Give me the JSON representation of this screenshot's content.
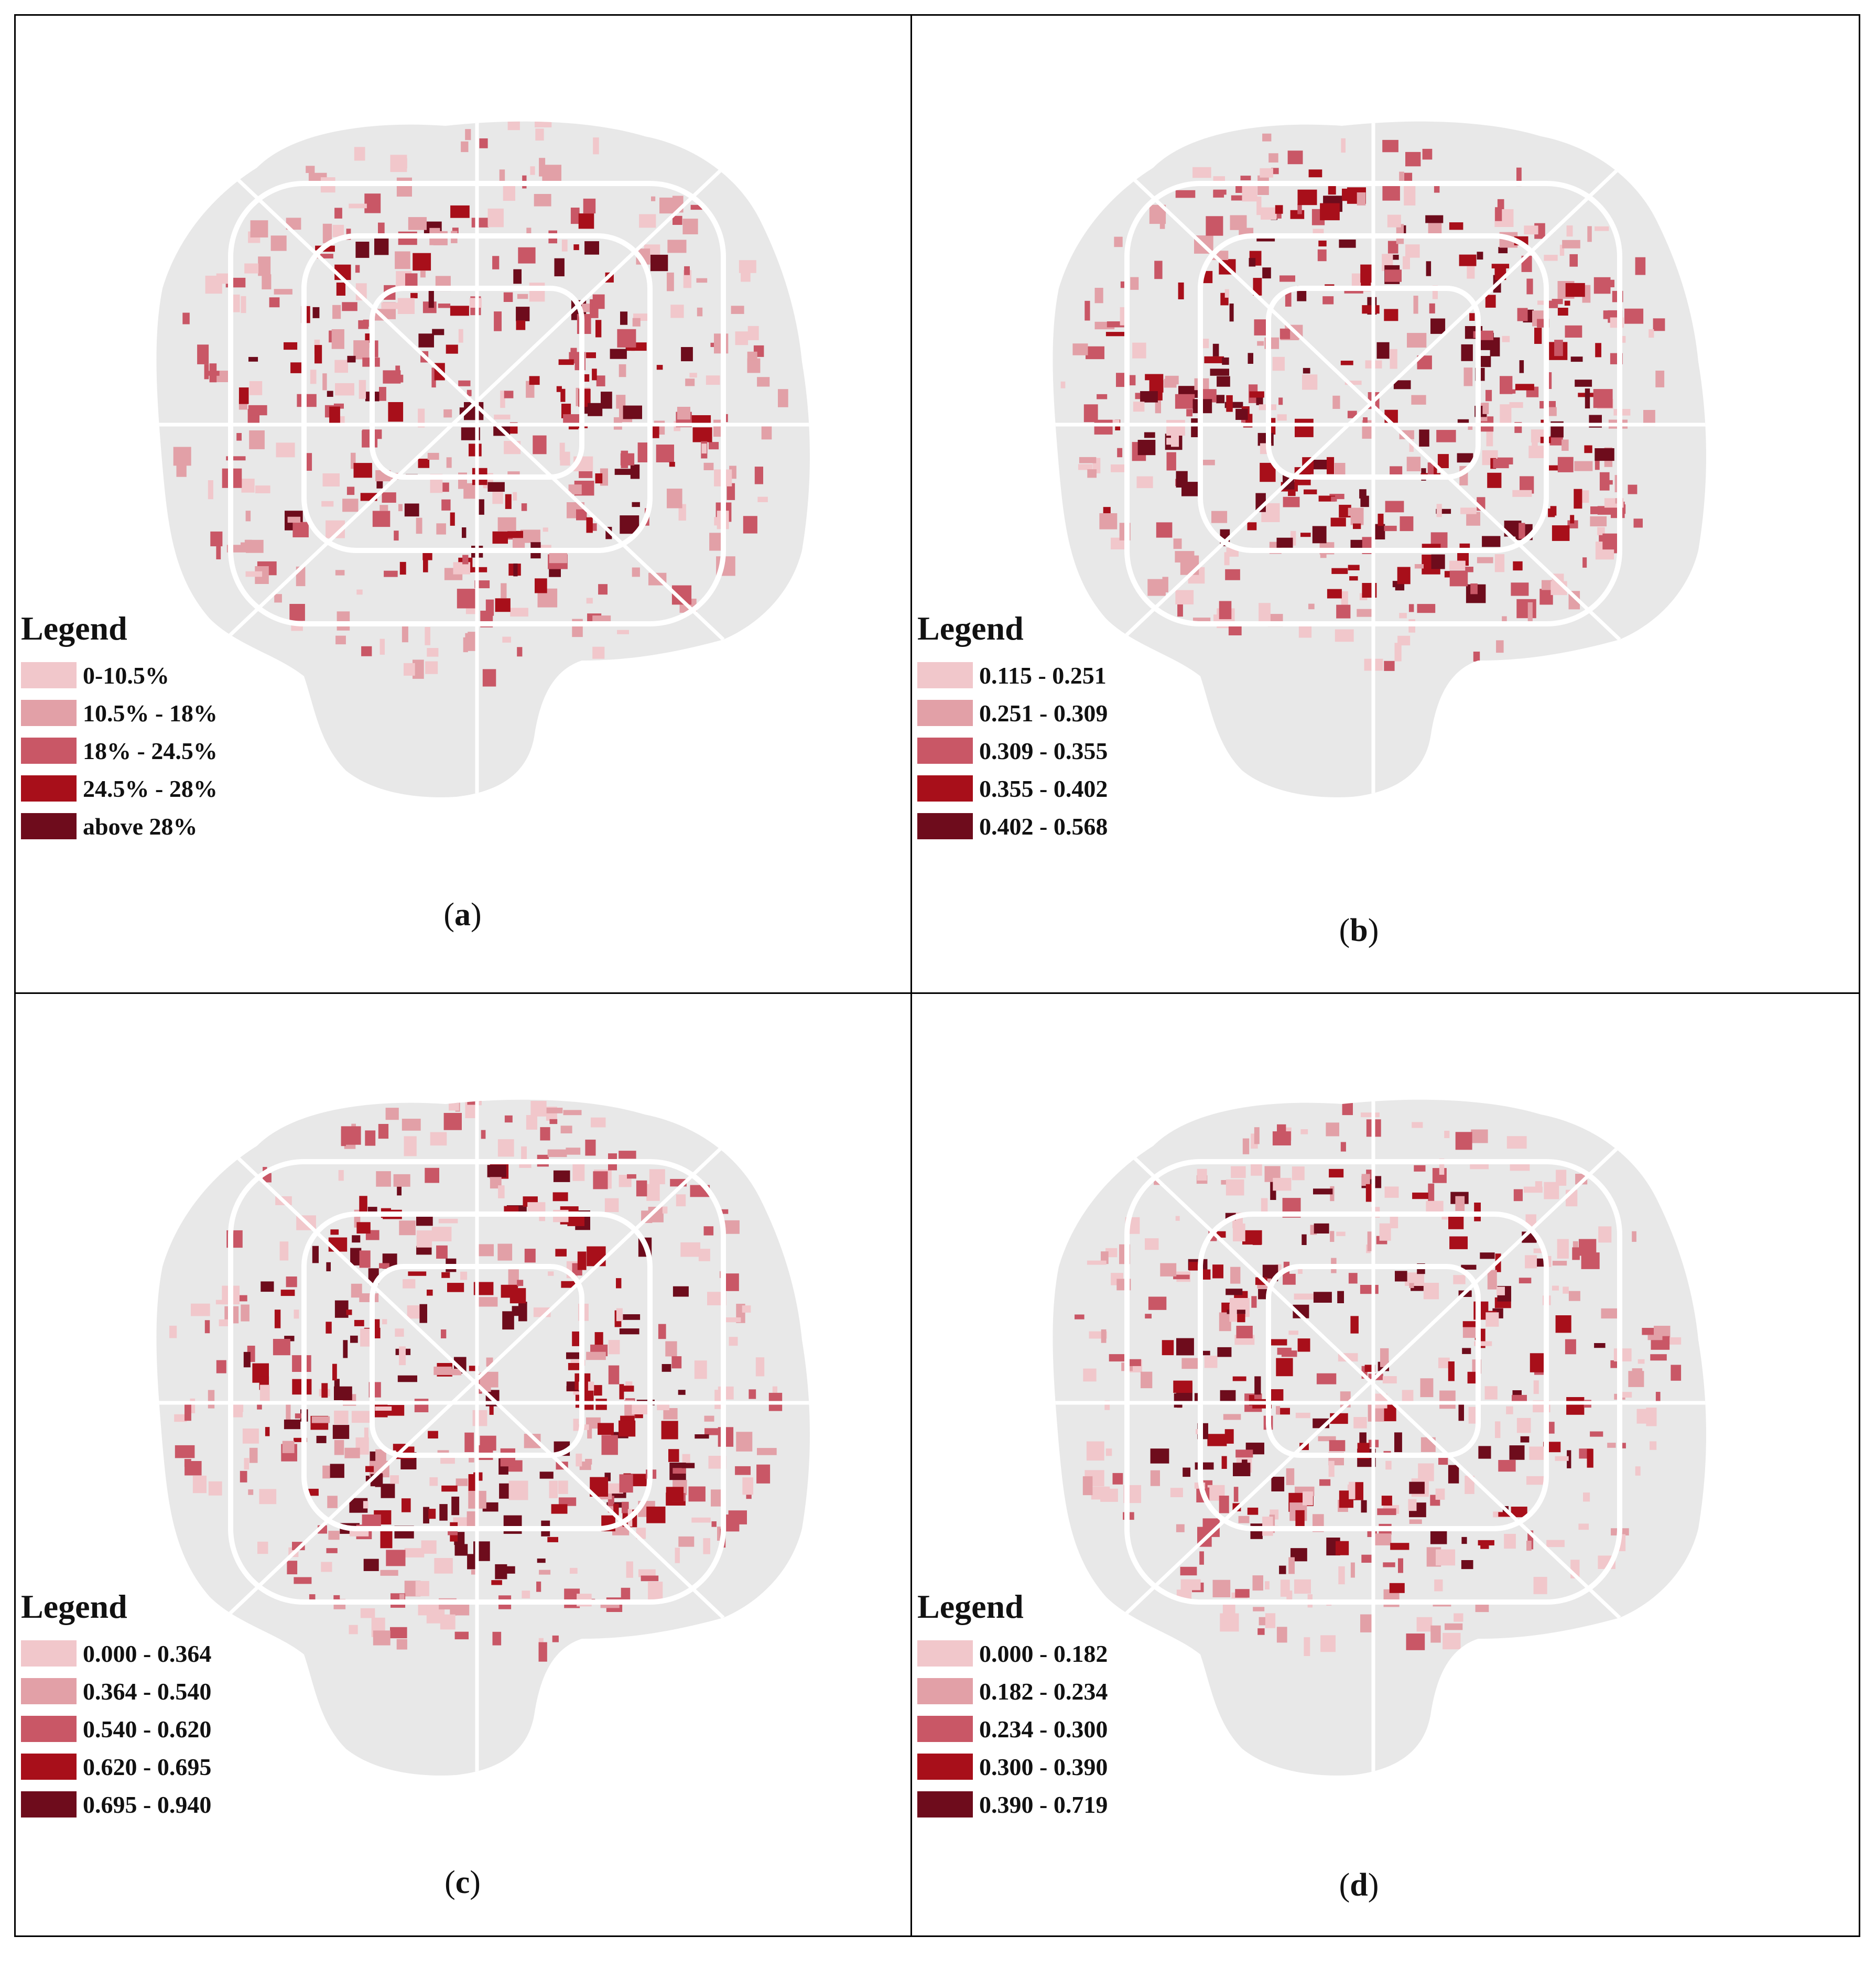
{
  "legend_colors": [
    "#f1c7cb",
    "#e2a0a7",
    "#c95766",
    "#a80f1a",
    "#6e0c1c"
  ],
  "base_map_color": "#e8e8e8",
  "road_color": "#ffffff",
  "panels": [
    {
      "caption_letter": "a",
      "legend_title": "Legend",
      "legend_items": [
        "0-10.5%",
        "10.5% - 18%",
        "18% - 24.5%",
        "24.5% - 28%",
        "above 28%"
      ]
    },
    {
      "caption_letter": "b",
      "legend_title": "Legend",
      "legend_items": [
        "0.115 - 0.251",
        "0.251 - 0.309",
        "0.309 - 0.355",
        "0.355 - 0.402",
        "0.402 - 0.568"
      ]
    },
    {
      "caption_letter": "c",
      "legend_title": "Legend",
      "legend_items": [
        "0.000 - 0.364",
        "0.364 - 0.540",
        "0.540 - 0.620",
        "0.620 - 0.695",
        "0.695 - 0.940"
      ]
    },
    {
      "caption_letter": "d",
      "legend_title": "Legend",
      "legend_items": [
        "0.000 - 0.182",
        "0.182 - 0.234",
        "0.234 - 0.300",
        "0.300 - 0.390",
        "0.390 - 0.719"
      ]
    }
  ]
}
